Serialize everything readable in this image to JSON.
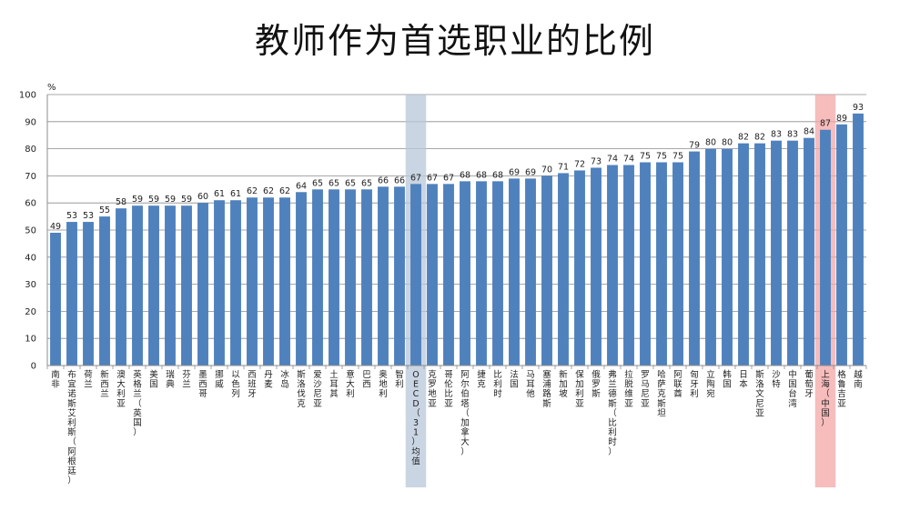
{
  "chart_data": {
    "type": "bar",
    "title": "教师作为首选职业的比例",
    "ylabel": "%",
    "ylim": [
      0,
      100
    ],
    "yticks": [
      0,
      10,
      20,
      30,
      40,
      50,
      60,
      70,
      80,
      90,
      100
    ],
    "grid": true,
    "categories": [
      "南非",
      "布宜诺斯艾利斯（阿根廷）",
      "荷兰",
      "新西兰",
      "澳大利亚",
      "英格兰（英国）",
      "美国",
      "瑞典",
      "芬兰",
      "墨西哥",
      "挪威",
      "以色列",
      "西班牙",
      "丹麦",
      "冰岛",
      "斯洛伐克",
      "爱沙尼亚",
      "土耳其",
      "意大利",
      "巴西",
      "奥地利",
      "智利",
      "OECD（31）均值",
      "克罗地亚",
      "哥伦比亚",
      "阿尔伯塔（加拿大）",
      "捷克",
      "比利时",
      "法国",
      "马耳他",
      "塞浦路斯",
      "新加坡",
      "保加利亚",
      "俄罗斯",
      "弗兰德斯（比利时）",
      "拉脱维亚",
      "罗马尼亚",
      "哈萨克斯坦",
      "阿联酋",
      "匈牙利",
      "立陶宛",
      "韩国",
      "日本",
      "斯洛文尼亚",
      "沙特",
      "中国台湾",
      "葡萄牙",
      "上海（中国）",
      "格鲁吉亚",
      "越南"
    ],
    "values": [
      49,
      53,
      53,
      55,
      58,
      59,
      59,
      59,
      59,
      60,
      61,
      61,
      62,
      62,
      62,
      64,
      65,
      65,
      65,
      65,
      66,
      66,
      67,
      67,
      67,
      68,
      68,
      68,
      69,
      69,
      70,
      71,
      72,
      73,
      74,
      74,
      75,
      75,
      75,
      79,
      80,
      80,
      82,
      82,
      83,
      83,
      84,
      87,
      89,
      93
    ],
    "bar_color": "#4f81bd",
    "highlights": [
      {
        "category": "OECD（31）均值",
        "color": "#b8c7da"
      },
      {
        "category": "上海（中国）",
        "color": "#f4a6a6"
      }
    ]
  }
}
